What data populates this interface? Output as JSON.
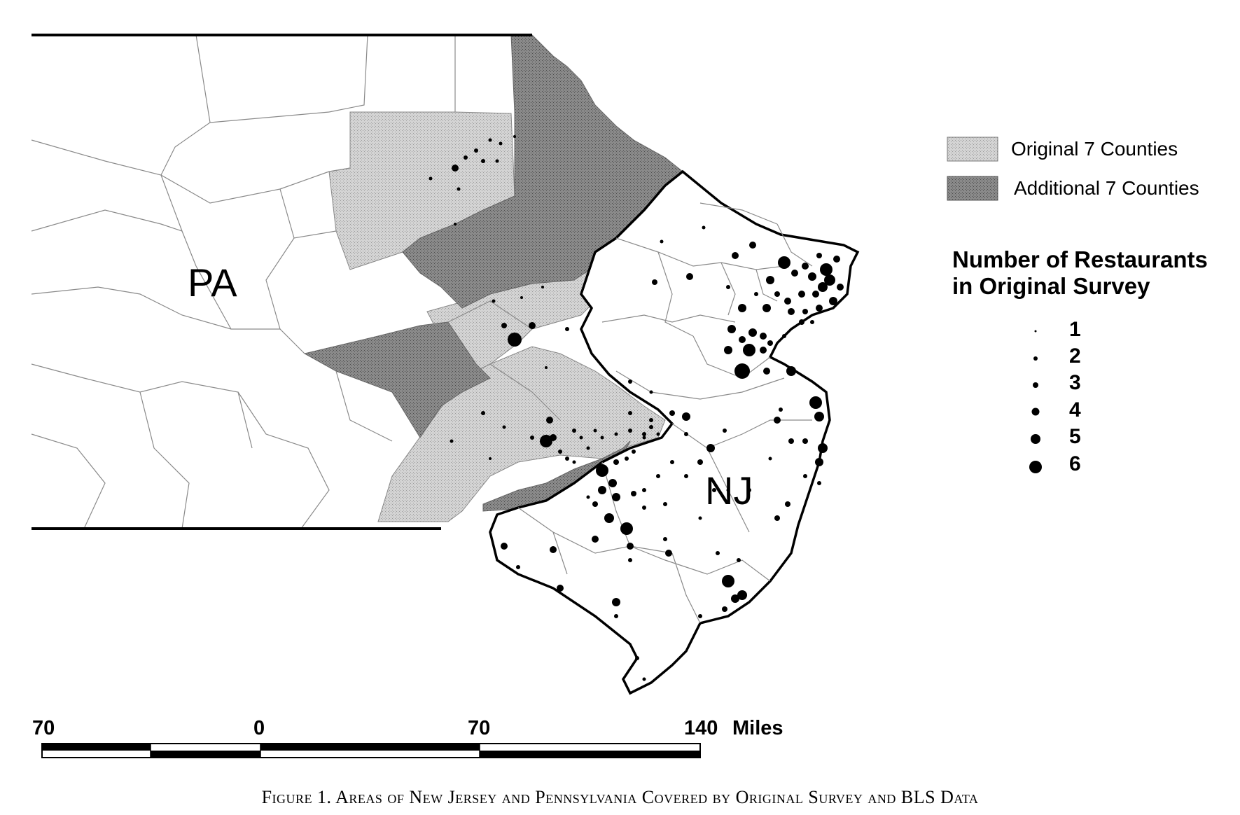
{
  "map": {
    "state_labels": {
      "pa": "PA",
      "nj": "NJ"
    },
    "colors": {
      "original": "#cfcfcf",
      "additional": "#8f8f8f",
      "border": "#000000",
      "county_line": "#888888"
    }
  },
  "legend": {
    "original_label": "Original 7 Counties",
    "additional_label": "Additional 7 Counties",
    "title_line1": "Number of Restaurants",
    "title_line2": "in Original Survey",
    "sizes": [
      "1",
      "2",
      "3",
      "4",
      "5",
      "6"
    ]
  },
  "scale_bar": {
    "labels": [
      "70",
      "0",
      "70",
      "140"
    ],
    "unit": "Miles"
  },
  "caption": "Figure 1. Areas of New Jersey and Pennsylvania Covered by Original Survey and BLS Data"
}
